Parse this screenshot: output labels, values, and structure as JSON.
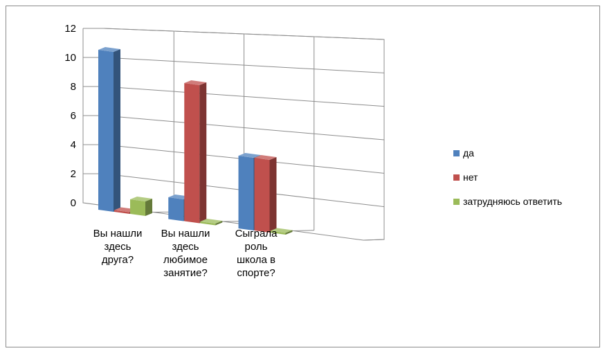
{
  "chart_data": {
    "type": "bar",
    "style": "3d-clustered-column",
    "categories": [
      [
        "Вы нашли",
        "здесь",
        "друга?"
      ],
      [
        "Вы нашли",
        "здесь",
        "любимое",
        "занятие?"
      ],
      [
        "Сыграла",
        "роль",
        "школа в",
        "спорте?"
      ]
    ],
    "series": [
      {
        "name": "да",
        "color": "#4f81bd",
        "values": [
          11,
          1.5,
          5
        ]
      },
      {
        "name": "нет",
        "color": "#c0504d",
        "values": [
          0,
          9.5,
          5
        ]
      },
      {
        "name": "затрудняюсь ответить",
        "color": "#9bbb59",
        "values": [
          1,
          0,
          0
        ]
      }
    ],
    "y_ticks": [
      0,
      2,
      4,
      6,
      8,
      10,
      12
    ],
    "ylim": [
      0,
      12
    ],
    "grid": true,
    "legend": "right"
  }
}
